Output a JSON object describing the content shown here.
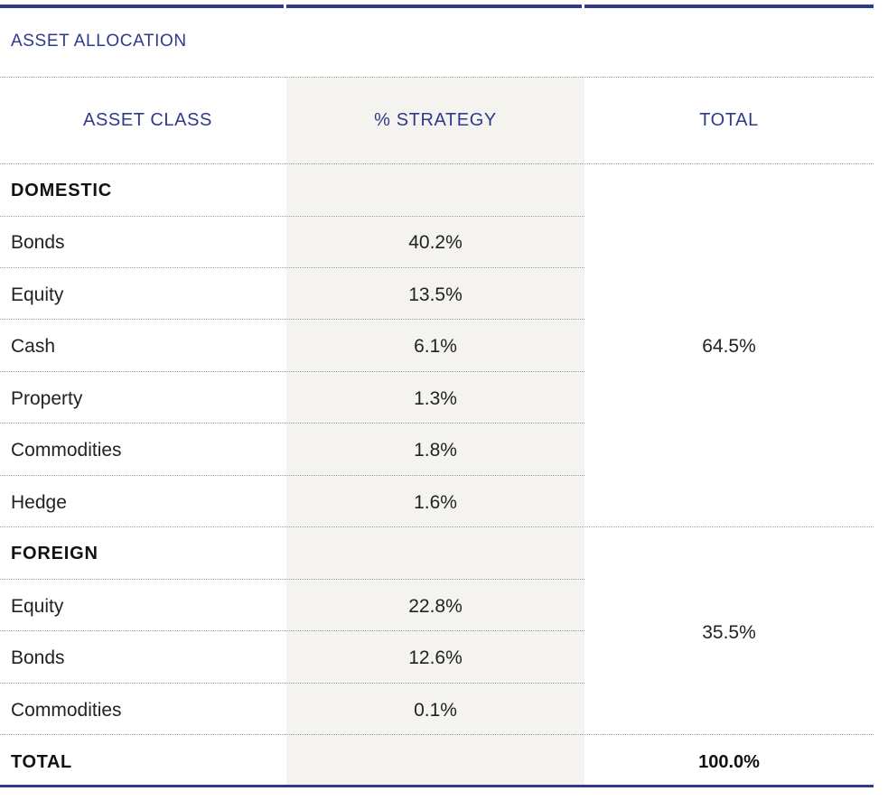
{
  "title": "ASSET ALLOCATION",
  "headers": [
    "ASSET CLASS",
    "% STRATEGY",
    "TOTAL"
  ],
  "groups": [
    {
      "label": "DOMESTIC",
      "total": "64.5%",
      "rows": [
        {
          "name": "Bonds",
          "pct": "40.2%"
        },
        {
          "name": "Equity",
          "pct": "13.5%"
        },
        {
          "name": "Cash",
          "pct": "6.1%"
        },
        {
          "name": "Property",
          "pct": "1.3%"
        },
        {
          "name": "Commodities",
          "pct": "1.8%"
        },
        {
          "name": "Hedge",
          "pct": "1.6%"
        }
      ]
    },
    {
      "label": "FOREIGN",
      "total": "35.5%",
      "rows": [
        {
          "name": "Equity",
          "pct": "22.8%"
        },
        {
          "name": "Bonds",
          "pct": "12.6%"
        },
        {
          "name": "Commodities",
          "pct": "0.1%"
        }
      ]
    }
  ],
  "grand_total": {
    "label": "TOTAL",
    "value": "100.0%"
  },
  "colors": {
    "accent": "#2e3a8c",
    "shade": "#f4f3ef"
  }
}
